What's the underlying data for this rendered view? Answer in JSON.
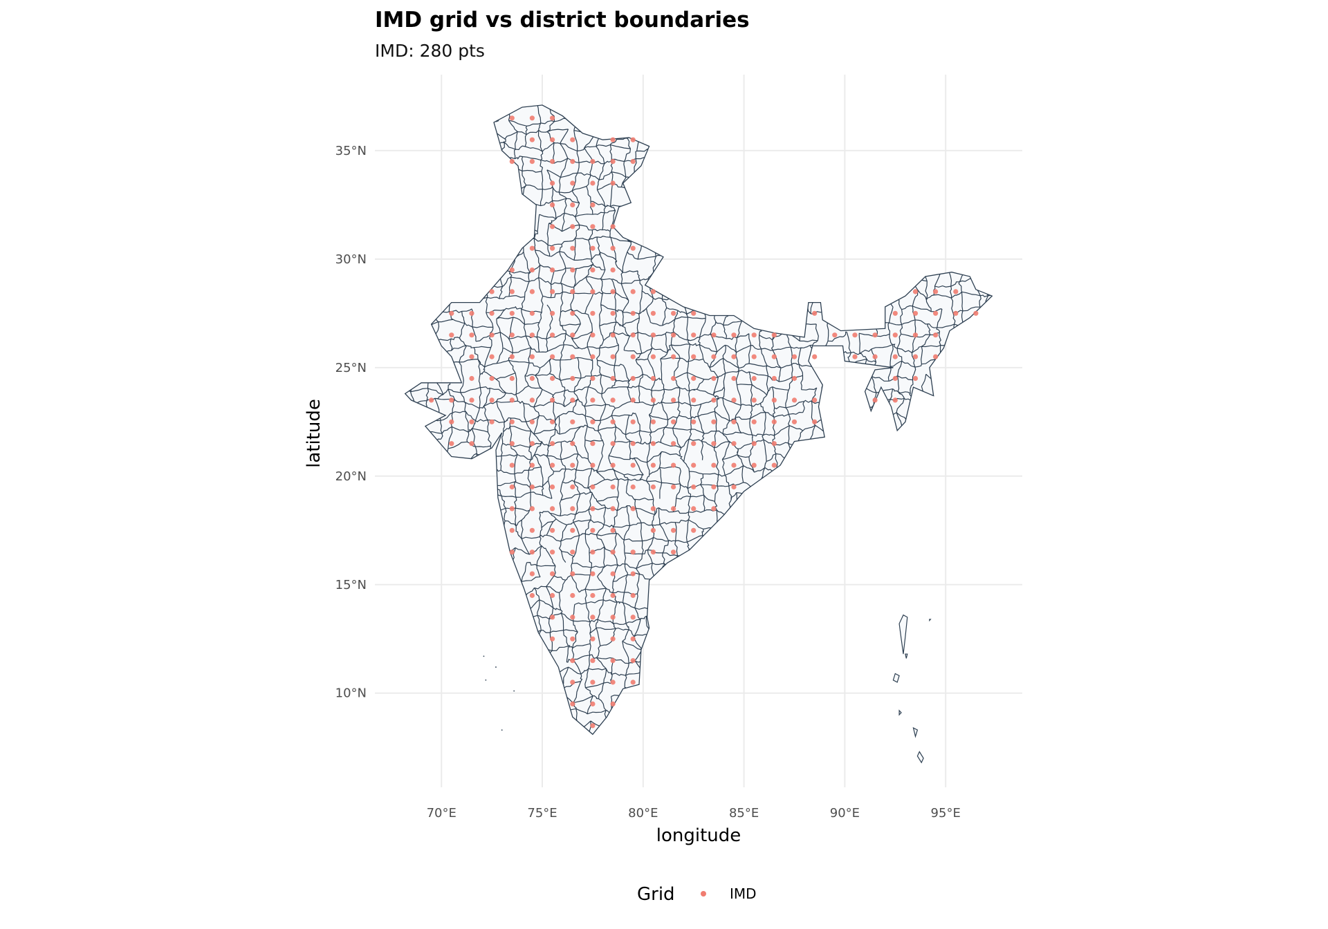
{
  "chart_data": {
    "type": "scatter",
    "title": "IMD grid vs district boundaries",
    "subtitle": "IMD: 280 pts",
    "xlabel": "longitude",
    "ylabel": "latitude",
    "xlim": [
      66.7,
      98.8
    ],
    "ylim": [
      5.66,
      38.5
    ],
    "x_ticks": [
      70,
      75,
      80,
      85,
      90,
      95
    ],
    "x_tick_labels": [
      "70°E",
      "75°E",
      "80°E",
      "85°E",
      "90°E",
      "95°E"
    ],
    "y_ticks": [
      10,
      15,
      20,
      25,
      30,
      35
    ],
    "y_tick_labels": [
      "10°N",
      "15°N",
      "20°N",
      "25°N",
      "30°N",
      "35°N"
    ],
    "grid": true,
    "legend": {
      "title": "Grid",
      "position": "bottom",
      "entries": [
        {
          "label": "IMD",
          "color": "#F07C70"
        }
      ]
    },
    "colors": {
      "point": "#F07C70",
      "boundary": "#2C3E50",
      "land_fill": "#F7F9FB",
      "gridline": "#EBEBEB"
    },
    "grid_spacing_deg": 1,
    "series": [
      {
        "name": "IMD",
        "rows": [
          {
            "lat": 36.5,
            "lon_ranges": [
              [
                73.5,
                75.5
              ]
            ]
          },
          {
            "lat": 35.5,
            "lon_ranges": [
              [
                74.5,
                76.5
              ],
              [
                78.5,
                79.5
              ]
            ]
          },
          {
            "lat": 34.5,
            "lon_ranges": [
              [
                73.5,
                79.5
              ]
            ]
          },
          {
            "lat": 33.5,
            "lon_ranges": [
              [
                75.5,
                78.5
              ]
            ]
          },
          {
            "lat": 32.5,
            "lon_ranges": [
              [
                75.5,
                77.5
              ]
            ]
          },
          {
            "lat": 31.5,
            "lon_ranges": [
              [
                75.5,
                78.5
              ]
            ]
          },
          {
            "lat": 30.5,
            "lon_ranges": [
              [
                74.5,
                79.5
              ]
            ]
          },
          {
            "lat": 29.5,
            "lon_ranges": [
              [
                73.5,
                78.5
              ]
            ]
          },
          {
            "lat": 28.5,
            "lon_ranges": [
              [
                72.5,
                80.5
              ],
              [
                93.5,
                95.5
              ]
            ]
          },
          {
            "lat": 27.5,
            "lon_ranges": [
              [
                70.5,
                82.5
              ],
              [
                88.5,
                88.5
              ],
              [
                92.5,
                96.5
              ]
            ]
          },
          {
            "lat": 26.5,
            "lon_ranges": [
              [
                70.5,
                86.5
              ],
              [
                89.5,
                94.5
              ]
            ]
          },
          {
            "lat": 25.5,
            "lon_ranges": [
              [
                71.5,
                88.5
              ],
              [
                90.5,
                94.5
              ]
            ]
          },
          {
            "lat": 24.5,
            "lon_ranges": [
              [
                71.5,
                87.5
              ],
              [
                92.5,
                93.5
              ]
            ]
          },
          {
            "lat": 23.5,
            "lon_ranges": [
              [
                69.5,
                88.5
              ],
              [
                91.5,
                92.5
              ]
            ]
          },
          {
            "lat": 22.5,
            "lon_ranges": [
              [
                70.5,
                88.5
              ]
            ]
          },
          {
            "lat": 21.5,
            "lon_ranges": [
              [
                70.5,
                71.5
              ],
              [
                73.5,
                86.5
              ]
            ]
          },
          {
            "lat": 20.5,
            "lon_ranges": [
              [
                73.5,
                86.5
              ]
            ]
          },
          {
            "lat": 19.5,
            "lon_ranges": [
              [
                73.5,
                84.5
              ]
            ]
          },
          {
            "lat": 18.5,
            "lon_ranges": [
              [
                73.5,
                83.5
              ]
            ]
          },
          {
            "lat": 17.5,
            "lon_ranges": [
              [
                73.5,
                78.5
              ],
              [
                80.5,
                82.5
              ]
            ]
          },
          {
            "lat": 16.5,
            "lon_ranges": [
              [
                73.5,
                81.5
              ]
            ]
          },
          {
            "lat": 15.5,
            "lon_ranges": [
              [
                74.5,
                79.5
              ]
            ]
          },
          {
            "lat": 14.5,
            "lon_ranges": [
              [
                74.5,
                79.5
              ]
            ]
          },
          {
            "lat": 13.5,
            "lon_ranges": [
              [
                75.5,
                79.5
              ]
            ]
          },
          {
            "lat": 12.5,
            "lon_ranges": [
              [
                75.5,
                79.5
              ]
            ]
          },
          {
            "lat": 11.5,
            "lon_ranges": [
              [
                76.5,
                79.5
              ]
            ]
          },
          {
            "lat": 10.5,
            "lon_ranges": [
              [
                76.5,
                79.5
              ]
            ]
          },
          {
            "lat": 9.5,
            "lon_ranges": [
              [
                76.5,
                78.5
              ]
            ]
          },
          {
            "lat": 8.5,
            "lon_ranges": [
              [
                77.5,
                77.5
              ]
            ]
          }
        ]
      }
    ],
    "boundaries": {
      "mainland": [
        [
          74.0,
          37.0
        ],
        [
          75.0,
          37.1
        ],
        [
          76.0,
          36.6
        ],
        [
          77.0,
          35.8
        ],
        [
          78.0,
          35.5
        ],
        [
          79.3,
          35.6
        ],
        [
          80.3,
          35.2
        ],
        [
          79.9,
          34.3
        ],
        [
          79.0,
          33.5
        ],
        [
          79.4,
          32.6
        ],
        [
          78.8,
          32.4
        ],
        [
          78.5,
          31.5
        ],
        [
          79.0,
          31.0
        ],
        [
          80.2,
          30.5
        ],
        [
          81.0,
          30.1
        ],
        [
          80.1,
          28.8
        ],
        [
          82.0,
          27.8
        ],
        [
          83.3,
          27.4
        ],
        [
          84.5,
          27.4
        ],
        [
          85.5,
          26.8
        ],
        [
          86.5,
          26.6
        ],
        [
          88.0,
          26.4
        ],
        [
          88.1,
          27.2
        ],
        [
          88.2,
          28.0
        ],
        [
          88.8,
          28.0
        ],
        [
          88.9,
          27.2
        ],
        [
          89.8,
          26.7
        ],
        [
          92.0,
          26.8
        ],
        [
          92.0,
          27.8
        ],
        [
          93.0,
          28.3
        ],
        [
          94.0,
          29.2
        ],
        [
          95.3,
          29.4
        ],
        [
          96.2,
          29.2
        ],
        [
          96.5,
          28.6
        ],
        [
          97.3,
          28.3
        ],
        [
          96.2,
          27.3
        ],
        [
          95.2,
          26.7
        ],
        [
          94.9,
          25.9
        ],
        [
          94.2,
          25.0
        ],
        [
          94.4,
          23.7
        ],
        [
          93.4,
          24.1
        ],
        [
          93.0,
          22.5
        ],
        [
          92.6,
          22.1
        ],
        [
          92.3,
          23.2
        ],
        [
          91.8,
          24.1
        ],
        [
          91.3,
          23.0
        ],
        [
          91.0,
          23.9
        ],
        [
          91.5,
          24.9
        ],
        [
          92.4,
          25.0
        ],
        [
          90.0,
          25.3
        ],
        [
          89.9,
          26.0
        ],
        [
          89.0,
          26.0
        ],
        [
          88.4,
          26.0
        ],
        [
          88.2,
          25.3
        ],
        [
          88.9,
          24.2
        ],
        [
          88.7,
          23.2
        ],
        [
          89.0,
          21.8
        ],
        [
          87.5,
          21.6
        ],
        [
          86.8,
          20.5
        ],
        [
          85.0,
          19.3
        ],
        [
          84.0,
          18.2
        ],
        [
          82.3,
          16.6
        ],
        [
          81.2,
          16.0
        ],
        [
          80.3,
          15.2
        ],
        [
          80.2,
          13.5
        ],
        [
          80.3,
          13.0
        ],
        [
          79.9,
          12.0
        ],
        [
          79.8,
          10.4
        ],
        [
          79.0,
          10.2
        ],
        [
          78.2,
          8.9
        ],
        [
          77.5,
          8.1
        ],
        [
          76.5,
          8.9
        ],
        [
          75.8,
          11.2
        ],
        [
          74.8,
          12.8
        ],
        [
          74.1,
          14.8
        ],
        [
          73.4,
          16.5
        ],
        [
          72.8,
          19.0
        ],
        [
          72.7,
          21.2
        ],
        [
          73.0,
          22.0
        ],
        [
          72.5,
          21.3
        ],
        [
          71.5,
          20.8
        ],
        [
          70.5,
          20.9
        ],
        [
          69.2,
          22.3
        ],
        [
          70.2,
          22.8
        ],
        [
          68.5,
          23.5
        ],
        [
          68.2,
          23.8
        ],
        [
          69.0,
          24.3
        ],
        [
          71.0,
          24.3
        ],
        [
          70.5,
          25.5
        ],
        [
          70.0,
          26.0
        ],
        [
          69.5,
          27.0
        ],
        [
          70.5,
          28.0
        ],
        [
          71.9,
          28.0
        ],
        [
          73.3,
          29.5
        ],
        [
          74.0,
          30.5
        ],
        [
          74.6,
          31.0
        ],
        [
          74.7,
          32.5
        ],
        [
          74.0,
          33.0
        ],
        [
          73.8,
          34.3
        ],
        [
          73.0,
          35.0
        ],
        [
          72.6,
          36.3
        ],
        [
          74.0,
          37.0
        ]
      ],
      "islands": [
        [
          [
            92.9,
            13.6
          ],
          [
            93.1,
            13.5
          ],
          [
            93.0,
            12.6
          ],
          [
            92.9,
            11.8
          ],
          [
            92.8,
            12.5
          ],
          [
            92.7,
            13.2
          ]
        ],
        [
          [
            92.5,
            10.9
          ],
          [
            92.7,
            10.8
          ],
          [
            92.6,
            10.5
          ],
          [
            92.4,
            10.6
          ]
        ],
        [
          [
            92.7,
            9.2
          ],
          [
            92.8,
            9.1
          ],
          [
            92.7,
            9.0
          ]
        ],
        [
          [
            93.4,
            8.4
          ],
          [
            93.6,
            8.3
          ],
          [
            93.5,
            8.0
          ]
        ],
        [
          [
            93.7,
            7.3
          ],
          [
            93.9,
            7.0
          ],
          [
            93.8,
            6.8
          ],
          [
            93.6,
            7.1
          ]
        ],
        [
          [
            94.2,
            13.4
          ],
          [
            94.25,
            13.4
          ],
          [
            94.2,
            13.35
          ]
        ],
        [
          [
            93.0,
            11.8
          ],
          [
            93.1,
            11.8
          ],
          [
            93.05,
            11.6
          ]
        ]
      ],
      "specks": [
        [
          72.7,
          11.2
        ],
        [
          72.2,
          10.6
        ],
        [
          73.6,
          10.1
        ],
        [
          72.1,
          11.7
        ],
        [
          73.0,
          8.3
        ]
      ]
    }
  }
}
